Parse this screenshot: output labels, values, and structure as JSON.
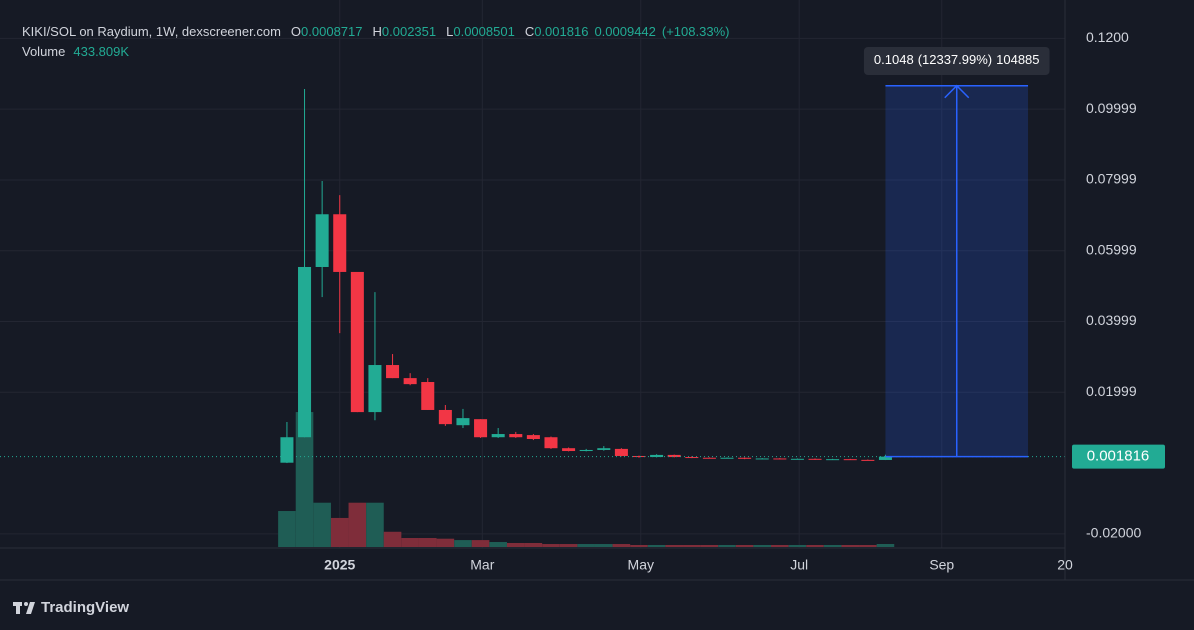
{
  "chart_data": {
    "type": "candlestick",
    "title": "KIKI/SOL on Raydium, 1W, dexscreener.com",
    "ohlc_labels": [
      "O",
      "H",
      "L",
      "C"
    ],
    "change": 0.0009442,
    "change_pct": {
      "value": 108.33,
      "label": "(+108.33%)"
    },
    "volume_title": "Volume",
    "volume_value_label": "433.809K",
    "x": [
      0,
      1,
      2,
      3,
      4,
      5,
      6,
      7,
      8,
      9,
      10,
      11,
      12,
      13,
      14,
      15,
      16,
      17,
      18,
      19,
      20,
      21,
      22,
      23,
      24,
      25,
      26,
      27,
      28,
      29,
      30,
      31,
      32,
      33,
      34
    ],
    "open": [
      0.0001,
      0.0073,
      0.0554,
      0.0703,
      0.054,
      0.0144,
      0.0277,
      0.024,
      0.0229,
      0.015,
      0.0107,
      0.0124,
      0.0073,
      0.0082,
      0.0079,
      0.0073,
      0.0042,
      0.0034,
      0.0037,
      0.004,
      0.002,
      0.0017,
      0.0023,
      0.0017,
      0.0015,
      0.0014,
      0.0015,
      0.0012,
      0.0013,
      0.0011,
      0.0012,
      0.001,
      0.0011,
      0.0009,
      0.0008717
    ],
    "high": [
      0.0116,
      0.1057,
      0.0797,
      0.0757,
      0.054,
      0.0483,
      0.0308,
      0.0254,
      0.024,
      0.0164,
      0.0153,
      0.0124,
      0.0099,
      0.0088,
      0.0082,
      0.0075,
      0.0044,
      0.004,
      0.0048,
      0.0042,
      0.0021,
      0.0025,
      0.0024,
      0.0019,
      0.0016,
      0.0016,
      0.0016,
      0.0014,
      0.0014,
      0.0013,
      0.0013,
      0.0012,
      0.0012,
      0.001,
      0.002351
    ],
    "low": [
      0.0,
      0.0073,
      0.0469,
      0.0367,
      0.0144,
      0.0121,
      0.024,
      0.022,
      0.015,
      0.0105,
      0.0099,
      0.0071,
      0.0071,
      0.0071,
      0.0065,
      0.004,
      0.0033,
      0.0033,
      0.0035,
      0.0019,
      0.0015,
      0.0016,
      0.0016,
      0.0014,
      0.0013,
      0.0013,
      0.0011,
      0.0011,
      0.001,
      0.001,
      0.0009,
      0.0009,
      0.0009,
      0.00085,
      0.0008501
    ],
    "close": [
      0.0073,
      0.0554,
      0.0703,
      0.054,
      0.0144,
      0.0277,
      0.024,
      0.0223,
      0.015,
      0.011,
      0.0127,
      0.0073,
      0.0082,
      0.0073,
      0.0068,
      0.0042,
      0.0034,
      0.0037,
      0.0042,
      0.002,
      0.0017,
      0.0023,
      0.0017,
      0.0015,
      0.0014,
      0.0015,
      0.0012,
      0.0013,
      0.0011,
      0.0012,
      0.001,
      0.0011,
      0.0009,
      0.00087,
      0.001816
    ],
    "volume": [
      5200000,
      19500000,
      6400000,
      4200000,
      6400000,
      6400000,
      2200000,
      1300000,
      1300000,
      1200000,
      1000000,
      1000000,
      720000,
      580000,
      580000,
      430000,
      430000,
      430000,
      430000,
      430000,
      290000,
      290000,
      290000,
      290000,
      290000,
      290000,
      290000,
      290000,
      290000,
      290000,
      290000,
      290000,
      290000,
      290000,
      433809
    ],
    "volume_ylim": [
      0,
      25000000
    ],
    "up_color": "#22ab94",
    "down_color": "#f23645",
    "volume_up_color": "#1f5d55",
    "volume_down_color": "#7f2d3a",
    "xlim": [
      -16.3,
      44.2
    ],
    "xticks": [
      {
        "value": 3,
        "label": "2025"
      },
      {
        "value": 11.1,
        "label": "Mar"
      },
      {
        "value": 20.1,
        "label": "May"
      },
      {
        "value": 29.1,
        "label": "Jul"
      },
      {
        "value": 37.2,
        "label": "Sep"
      },
      {
        "value": 44.2,
        "label": "20"
      }
    ],
    "ylim": [
      -0.024,
      0.1266
    ],
    "yticks": [
      {
        "value": 0.12,
        "label": "0.1200"
      },
      0.09999,
      0.07999,
      0.05999,
      0.03999,
      0.01999,
      {
        "value": -0.02,
        "label": "-0.02000"
      }
    ],
    "grid": true,
    "measure": {
      "x_from": 34,
      "x_to": 42.1,
      "change": 0.1048,
      "percent": {
        "value": 12337.99,
        "label": "(12337.99%)"
      },
      "bars": 104885,
      "color": "#2962ff"
    },
    "brand": "TradingView"
  }
}
